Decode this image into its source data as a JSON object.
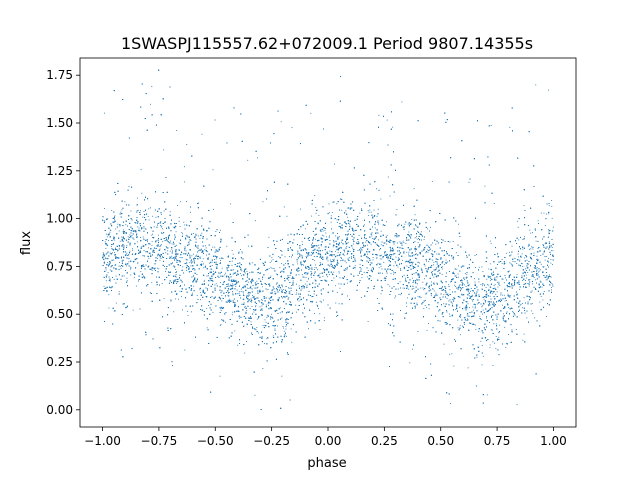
{
  "chart_data": {
    "type": "scatter",
    "title": "1SWASPJ115557.62+072009.1 Period 9807.14355s",
    "xlabel": "phase",
    "ylabel": "flux",
    "xlim": [
      -1.1,
      1.1
    ],
    "ylim": [
      -0.09,
      1.84
    ],
    "x_ticks": [
      -1.0,
      -0.75,
      -0.5,
      -0.25,
      0.0,
      0.25,
      0.5,
      0.75,
      1.0
    ],
    "x_tick_labels": [
      "−1.00",
      "−0.75",
      "−0.50",
      "−0.25",
      "0.00",
      "0.25",
      "0.50",
      "0.75",
      "1.00"
    ],
    "y_ticks": [
      0.0,
      0.25,
      0.5,
      0.75,
      1.0,
      1.25,
      1.5,
      1.75
    ],
    "y_tick_labels": [
      "0.00",
      "0.25",
      "0.50",
      "0.75",
      "1.00",
      "1.25",
      "1.50",
      "1.75"
    ],
    "grid": false,
    "legend": "none",
    "marker_color": "#1f77b4",
    "series": [
      {
        "x": [
          -1.0,
          -0.9,
          -0.8,
          -0.7,
          -0.6,
          -0.5,
          -0.4,
          -0.3,
          -0.2,
          -0.1,
          0.0,
          0.1,
          0.2,
          0.3,
          0.4,
          0.5,
          0.6,
          0.7,
          0.8,
          0.9,
          1.0
        ],
        "y": [
          0.79,
          0.84,
          0.85,
          0.82,
          0.76,
          0.69,
          0.61,
          0.55,
          0.62,
          0.73,
          0.81,
          0.84,
          0.83,
          0.8,
          0.75,
          0.67,
          0.59,
          0.55,
          0.62,
          0.73,
          0.79
        ],
        "scatter": 0.13,
        "points": 14000
      }
    ]
  }
}
